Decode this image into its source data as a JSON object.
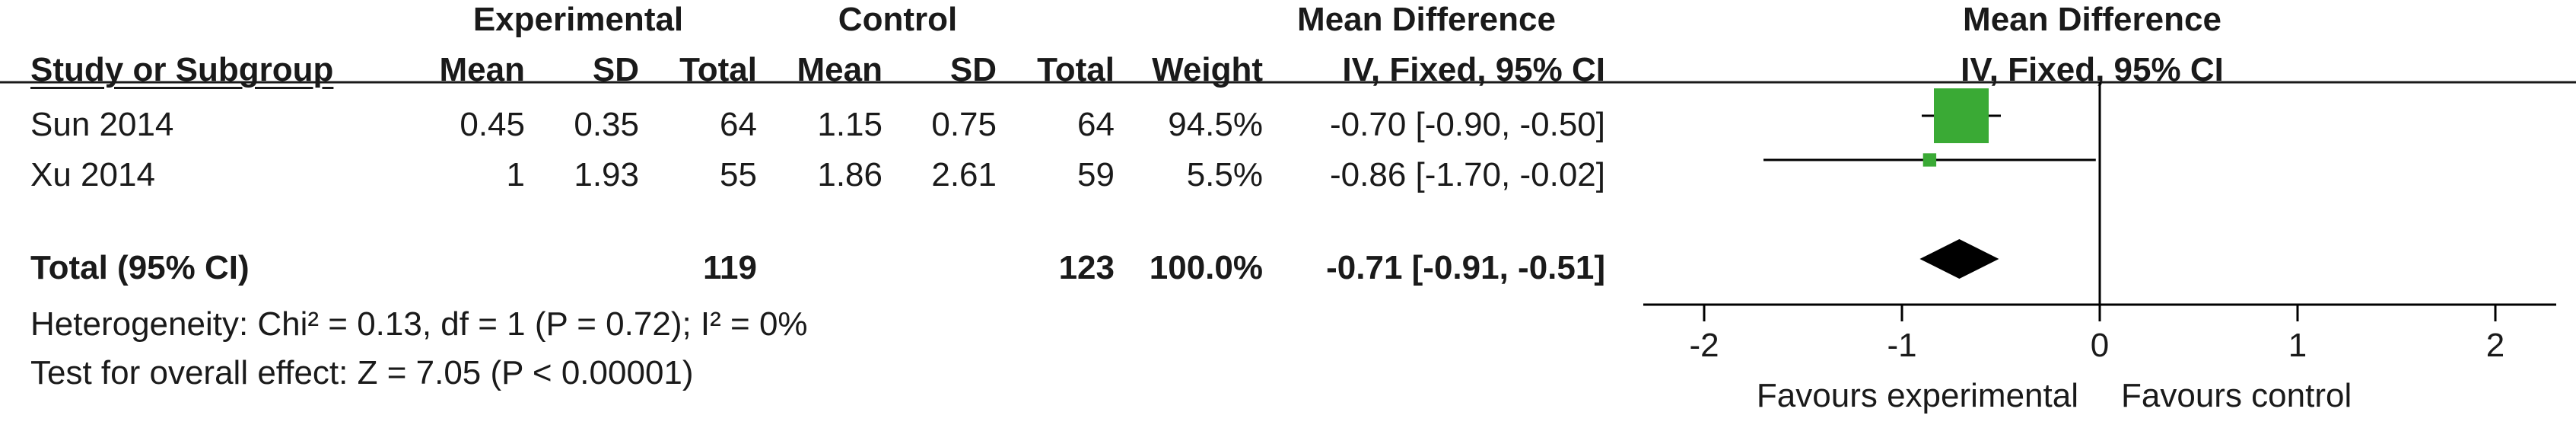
{
  "headers": {
    "experimental": "Experimental",
    "control": "Control",
    "mean_difference": "Mean Difference",
    "study_or_subgroup": "Study or Subgroup",
    "mean": "Mean",
    "sd": "SD",
    "total": "Total",
    "weight": "Weight",
    "method": "IV, Fixed, 95% CI",
    "plot_header": "Mean Difference",
    "plot_method": "IV, Fixed, 95% CI"
  },
  "studies": [
    {
      "name": "Sun 2014",
      "exp_mean": "0.45",
      "exp_sd": "0.35",
      "exp_total": "64",
      "ctrl_mean": "1.15",
      "ctrl_sd": "0.75",
      "ctrl_total": "64",
      "weight": "94.5%",
      "ci": "-0.70 [-0.90, -0.50]"
    },
    {
      "name": "Xu 2014",
      "exp_mean": "1",
      "exp_sd": "1.93",
      "exp_total": "55",
      "ctrl_mean": "1.86",
      "ctrl_sd": "2.61",
      "ctrl_total": "59",
      "weight": "5.5%",
      "ci": "-0.86 [-1.70, -0.02]"
    }
  ],
  "total": {
    "label": "Total (95% CI)",
    "exp_total": "119",
    "ctrl_total": "123",
    "weight": "100.0%",
    "ci": "-0.71 [-0.91, -0.51]"
  },
  "heterogeneity": "Heterogeneity: Chi² = 0.13, df = 1 (P = 0.72); I² = 0%",
  "overall_effect": "Test for overall effect: Z = 7.05 (P < 0.00001)",
  "colors": {
    "study_marker": "#3aaa35",
    "diamond": "#000000",
    "line": "#000000"
  },
  "chart_data": {
    "type": "forest",
    "xlim": [
      -2,
      2
    ],
    "ticks": [
      -2,
      -1,
      0,
      1,
      2
    ],
    "tick_labels": [
      "-2",
      "-1",
      "0",
      "1",
      "2"
    ],
    "xlabel_left": "Favours experimental",
    "xlabel_right": "Favours control",
    "points": [
      {
        "study": "Sun 2014",
        "estimate": -0.7,
        "lower": -0.9,
        "upper": -0.5,
        "weight": 94.5
      },
      {
        "study": "Xu 2014",
        "estimate": -0.86,
        "lower": -1.7,
        "upper": -0.02,
        "weight": 5.5
      }
    ],
    "summary": {
      "estimate": -0.71,
      "lower": -0.91,
      "upper": -0.51
    }
  }
}
